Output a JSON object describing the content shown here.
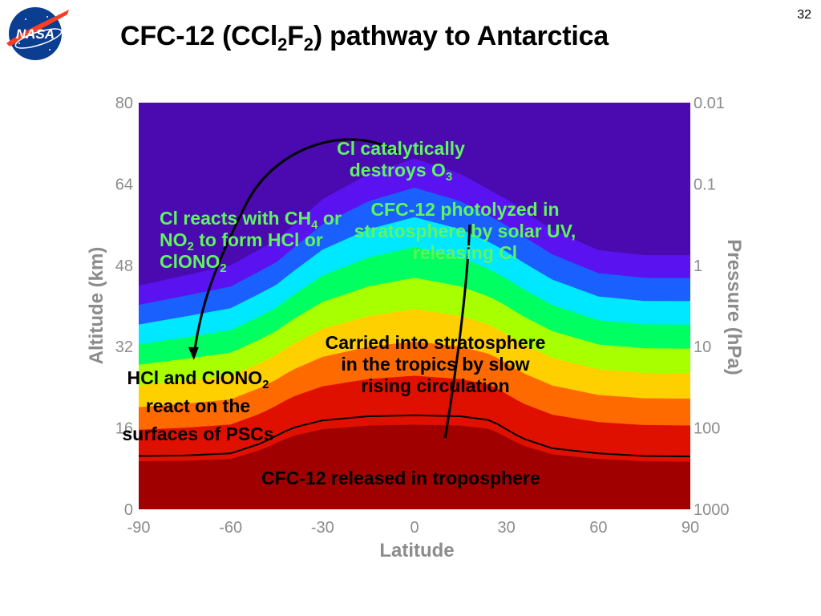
{
  "slide": {
    "number": "32",
    "logo_text": "NASA",
    "title_parts": [
      "CFC-12 (CCl",
      "2",
      "F",
      "2",
      ") pathway to Antarctica"
    ]
  },
  "colors": {
    "annotation_green": "#5ef55e",
    "annotation_dark": "#000000",
    "axis_gray": "#8c8c8c",
    "nasa_blue": "#0b3d91",
    "nasa_red": "#fc3d21"
  },
  "chart_data": {
    "type": "heatmap",
    "title": "",
    "xlabel": "Latitude",
    "ylabel": "Altitude (km)",
    "y2label": "Pressure (hPa)",
    "xlim": [
      -90,
      90
    ],
    "ylim": [
      0,
      80
    ],
    "x_ticks": [
      "-90",
      "-60",
      "-30",
      "0",
      "30",
      "60",
      "90"
    ],
    "y_ticks": [
      "0",
      "16",
      "32",
      "48",
      "64",
      "80"
    ],
    "y2_ticks": [
      "1000",
      "100",
      "10",
      "1",
      "0.1",
      "0.01"
    ],
    "colormap": [
      "#a00000",
      "#e01000",
      "#ff6a00",
      "#ffd000",
      "#a8ff00",
      "#00ff60",
      "#00e8ff",
      "#1a60ff",
      "#5a12f0",
      "#4a0ab0"
    ],
    "tropopause_altitude_km": [
      [
        -90,
        10.5
      ],
      [
        -75,
        10.6
      ],
      [
        -60,
        11
      ],
      [
        -50,
        13
      ],
      [
        -40,
        16
      ],
      [
        -30,
        17.5
      ],
      [
        -15,
        18.3
      ],
      [
        0,
        18.5
      ],
      [
        15,
        18.3
      ],
      [
        25,
        17.5
      ],
      [
        35,
        14
      ],
      [
        45,
        12
      ],
      [
        60,
        11
      ],
      [
        75,
        10.5
      ],
      [
        90,
        10.4
      ]
    ],
    "contour_top_altitude_km": [
      [
        -90,
        44
      ],
      [
        -75,
        46
      ],
      [
        -60,
        48
      ],
      [
        -45,
        53
      ],
      [
        -30,
        61
      ],
      [
        -15,
        66
      ],
      [
        0,
        69
      ],
      [
        15,
        66
      ],
      [
        30,
        61
      ],
      [
        45,
        55
      ],
      [
        60,
        51
      ],
      [
        75,
        50
      ],
      [
        90,
        50
      ]
    ],
    "pathway_arrows": [
      {
        "name": "rising",
        "from": [
          10,
          14
        ],
        "via": [
          17,
          40
        ],
        "to": [
          18,
          56
        ]
      },
      {
        "name": "descent",
        "from": [
          -5,
          70
        ],
        "via": [
          -45,
          72
        ],
        "to": [
          -72,
          30
        ]
      }
    ],
    "annotations": {
      "cl_destroys": {
        "lines": [
          [
            "Cl catalytically"
          ],
          [
            "destroys O",
            "3"
          ]
        ]
      },
      "cfc_photolyzed": {
        "lines": [
          "CFC-12 photolyzed in",
          "stratosphere by solar UV,",
          "releasing Cl"
        ]
      },
      "cl_reacts": {
        "lines": [
          [
            "Cl reacts with CH",
            "4",
            " or"
          ],
          [
            "NO",
            "2",
            " to form HCl or"
          ],
          [
            "ClONO",
            "2",
            ""
          ]
        ]
      },
      "carried": {
        "lines": [
          "Carried into stratosphere",
          "in the tropics by slow",
          "rising circulation"
        ]
      },
      "hcl_clono2": {
        "lines": [
          [
            "HCl and ClONO",
            "2"
          ],
          [
            "react on the"
          ],
          [
            "surfaces of PSCs"
          ]
        ]
      },
      "released": {
        "text": "CFC-12 released in troposphere"
      }
    }
  }
}
